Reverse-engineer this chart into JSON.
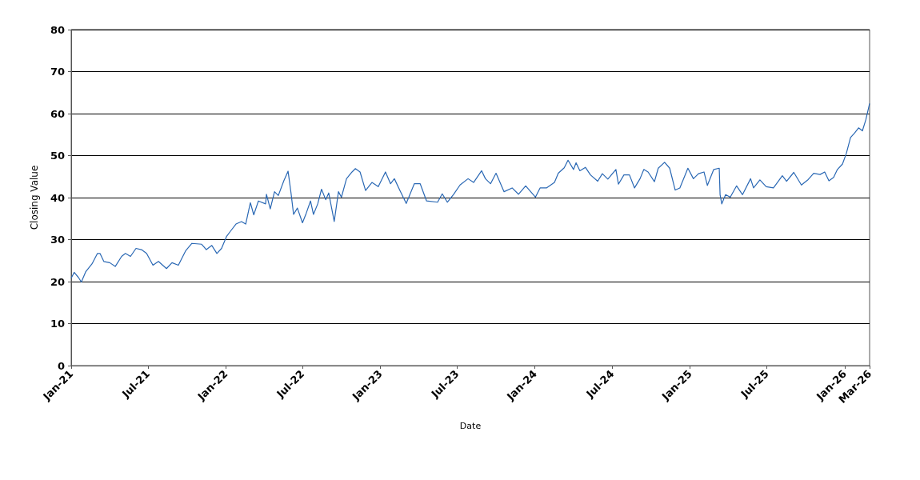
{
  "chart_data": {
    "type": "line",
    "xlabel": "Date",
    "ylabel": "Closing Value",
    "xlim": [
      "2021-01-01",
      "2026-03-01"
    ],
    "xticks": [
      {
        "value": "2021-01-01",
        "label": "Jan-21"
      },
      {
        "value": "2021-07-01",
        "label": "Jul-21"
      },
      {
        "value": "2022-01-01",
        "label": "Jan-22"
      },
      {
        "value": "2022-07-01",
        "label": "Jul-22"
      },
      {
        "value": "2023-01-01",
        "label": "Jan-23"
      },
      {
        "value": "2023-07-01",
        "label": "Jul-23"
      },
      {
        "value": "2024-01-01",
        "label": "Jan-24"
      },
      {
        "value": "2024-07-01",
        "label": "Jul-24"
      },
      {
        "value": "2025-01-01",
        "label": "Jan-25"
      },
      {
        "value": "2025-07-01",
        "label": "Jul-25"
      },
      {
        "value": "2026-01-01",
        "label": "Jan-26"
      },
      {
        "value": "2026-03-01",
        "label": "Mar-26"
      }
    ],
    "ylim": [
      0,
      80
    ],
    "yticks": [
      0,
      10,
      20,
      30,
      40,
      50,
      60,
      70,
      80
    ],
    "grid": "y",
    "marker": "none",
    "line_style": "solid",
    "series": [
      {
        "color": "#2a68b4",
        "x": [
          "2021-01-01",
          "2021-01-08",
          "2021-01-18",
          "2021-01-25",
          "2021-02-04",
          "2021-02-19",
          "2021-03-04",
          "2021-03-10",
          "2021-03-19",
          "2021-04-02",
          "2021-04-15",
          "2021-04-30",
          "2021-05-09",
          "2021-05-21",
          "2021-06-03",
          "2021-06-16",
          "2021-06-28",
          "2021-07-13",
          "2021-07-26",
          "2021-08-14",
          "2021-08-27",
          "2021-09-11",
          "2021-09-28",
          "2021-10-13",
          "2021-11-05",
          "2021-11-16",
          "2021-11-29",
          "2021-12-11",
          "2021-12-22",
          "2022-01-03",
          "2022-01-12",
          "2022-01-25",
          "2022-02-07",
          "2022-02-17",
          "2022-02-28",
          "2022-03-08",
          "2022-03-19",
          "2022-04-05",
          "2022-04-07",
          "2022-04-16",
          "2022-04-26",
          "2022-05-05",
          "2022-05-18",
          "2022-05-28",
          "2022-06-04",
          "2022-06-10",
          "2022-06-19",
          "2022-07-01",
          "2022-07-10",
          "2022-07-20",
          "2022-07-27",
          "2022-08-06",
          "2022-08-15",
          "2022-08-25",
          "2022-09-01",
          "2022-09-14",
          "2022-09-24",
          "2022-10-01",
          "2022-10-13",
          "2022-10-26",
          "2022-11-03",
          "2022-11-14",
          "2022-11-27",
          "2022-12-12",
          "2022-12-27",
          "2023-01-13",
          "2023-01-25",
          "2023-02-03",
          "2023-02-16",
          "2023-03-03",
          "2023-03-22",
          "2023-04-05",
          "2023-04-20",
          "2023-05-16",
          "2023-05-27",
          "2023-06-08",
          "2023-06-23",
          "2023-07-08",
          "2023-07-27",
          "2023-08-09",
          "2023-08-28",
          "2023-09-06",
          "2023-09-18",
          "2023-10-01",
          "2023-10-20",
          "2023-11-08",
          "2023-11-23",
          "2023-12-10",
          "2024-01-02",
          "2024-01-13",
          "2024-01-28",
          "2024-02-16",
          "2024-02-25",
          "2024-03-10",
          "2024-03-19",
          "2024-04-01",
          "2024-04-07",
          "2024-04-16",
          "2024-04-29",
          "2024-05-11",
          "2024-05-28",
          "2024-06-08",
          "2024-06-21",
          "2024-07-10",
          "2024-07-16",
          "2024-07-29",
          "2024-08-11",
          "2024-08-23",
          "2024-09-05",
          "2024-09-14",
          "2024-09-24",
          "2024-10-09",
          "2024-10-18",
          "2024-11-02",
          "2024-11-14",
          "2024-11-27",
          "2024-12-08",
          "2024-12-27",
          "2025-01-09",
          "2025-01-21",
          "2025-02-03",
          "2025-02-11",
          "2025-02-26",
          "2025-03-11",
          "2025-03-13",
          "2025-03-17",
          "2025-03-26",
          "2025-04-06",
          "2025-04-21",
          "2025-05-05",
          "2025-05-24",
          "2025-05-31",
          "2025-06-15",
          "2025-06-30",
          "2025-07-17",
          "2025-08-07",
          "2025-08-17",
          "2025-09-03",
          "2025-09-21",
          "2025-10-07",
          "2025-10-20",
          "2025-11-04",
          "2025-11-15",
          "2025-11-25",
          "2025-12-06",
          "2025-12-15",
          "2025-12-27",
          "2026-01-05",
          "2026-01-15",
          "2026-01-24",
          "2026-02-03",
          "2026-02-12",
          "2026-02-20",
          "2026-03-01"
        ],
        "values": [
          20.8,
          22.2,
          21,
          19.9,
          22.3,
          24.2,
          26.7,
          26.7,
          24.8,
          24.5,
          23.6,
          26,
          26.7,
          26,
          27.9,
          27.6,
          26.7,
          23.9,
          24.8,
          23.1,
          24.5,
          23.9,
          27.3,
          29.1,
          28.9,
          27.6,
          28.6,
          26.7,
          27.9,
          30.8,
          32,
          33.7,
          34.3,
          33.7,
          38.8,
          35.9,
          39.2,
          38.5,
          40.8,
          37.3,
          41.4,
          40.5,
          44,
          46.3,
          41.1,
          36,
          37.5,
          34,
          36.3,
          39.2,
          36,
          38.5,
          42,
          39.5,
          41.1,
          34.3,
          41.4,
          40.1,
          44.5,
          46.1,
          46.9,
          46.1,
          41.7,
          43.6,
          42.6,
          46.1,
          43.3,
          44.5,
          41.7,
          38.6,
          43.3,
          43.3,
          39.2,
          38.9,
          40.9,
          38.9,
          40.8,
          43,
          44.5,
          43.6,
          46.4,
          44.5,
          43.3,
          45.8,
          41.4,
          42.3,
          40.8,
          42.8,
          40.1,
          42.3,
          42.3,
          43.6,
          45.8,
          47.1,
          48.9,
          46.7,
          48.3,
          46.4,
          47.2,
          45.4,
          43.9,
          45.7,
          44.4,
          46.7,
          43.2,
          45.4,
          45.4,
          42.3,
          44.5,
          46.7,
          46.1,
          43.8,
          47,
          48.4,
          47,
          41.8,
          42.3,
          47,
          44.5,
          45.7,
          46.1,
          42.9,
          46.7,
          47,
          40.7,
          38.5,
          40.7,
          40.1,
          42.8,
          40.7,
          44.5,
          42.3,
          44.2,
          42.6,
          42.3,
          45.2,
          43.9,
          46,
          43,
          44.3,
          45.8,
          45.5,
          46.1,
          44,
          44.8,
          46.7,
          48,
          50.5,
          54.3,
          55.3,
          56.6,
          55.9,
          58.5,
          62.4
        ]
      }
    ]
  }
}
